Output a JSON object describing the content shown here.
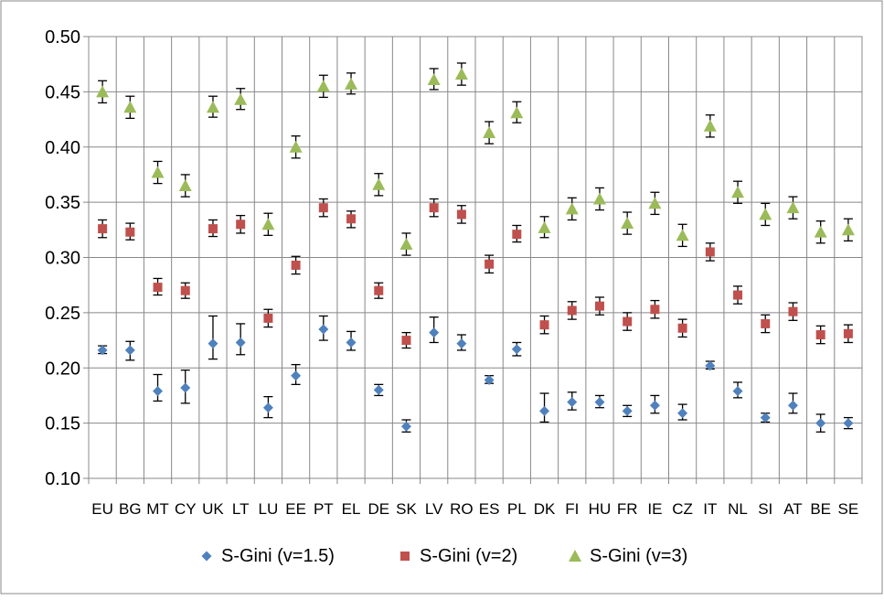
{
  "chart_data": {
    "type": "scatter",
    "categories": [
      "EU",
      "BG",
      "MT",
      "CY",
      "UK",
      "LT",
      "LU",
      "EE",
      "PT",
      "EL",
      "DE",
      "SK",
      "LV",
      "RO",
      "ES",
      "PL",
      "DK",
      "FI",
      "HU",
      "FR",
      "IE",
      "CZ",
      "IT",
      "NL",
      "SI",
      "AT",
      "BE",
      "SE"
    ],
    "ylim": [
      0.1,
      0.5
    ],
    "yticks": [
      "0.10",
      "0.15",
      "0.20",
      "0.25",
      "0.30",
      "0.35",
      "0.40",
      "0.45",
      "0.50"
    ],
    "grid": {
      "horizontal": true,
      "vertical": true
    },
    "legend_position": "bottom",
    "series": [
      {
        "name": "S-Gini (v=1.5)",
        "marker": "diamond",
        "color": "#4f81bd",
        "values": [
          0.216,
          0.216,
          0.179,
          0.182,
          0.222,
          0.223,
          0.164,
          0.193,
          0.235,
          0.223,
          0.18,
          0.147,
          0.232,
          0.222,
          0.189,
          0.217,
          0.161,
          0.169,
          0.169,
          0.161,
          0.166,
          0.159,
          0.202,
          0.179,
          0.155,
          0.166,
          0.15,
          0.15
        ],
        "err_low": [
          0.213,
          0.207,
          0.17,
          0.168,
          0.208,
          0.212,
          0.155,
          0.185,
          0.225,
          0.216,
          0.175,
          0.142,
          0.223,
          0.216,
          0.186,
          0.211,
          0.151,
          0.162,
          0.164,
          0.156,
          0.159,
          0.153,
          0.199,
          0.173,
          0.151,
          0.159,
          0.142,
          0.145
        ],
        "err_high": [
          0.22,
          0.224,
          0.194,
          0.198,
          0.247,
          0.24,
          0.174,
          0.203,
          0.247,
          0.233,
          0.185,
          0.153,
          0.246,
          0.23,
          0.193,
          0.223,
          0.177,
          0.178,
          0.175,
          0.166,
          0.175,
          0.167,
          0.206,
          0.187,
          0.159,
          0.177,
          0.158,
          0.155
        ]
      },
      {
        "name": "S-Gini (v=2)",
        "marker": "square",
        "color": "#c0504d",
        "values": [
          0.326,
          0.323,
          0.273,
          0.27,
          0.326,
          0.33,
          0.245,
          0.293,
          0.345,
          0.335,
          0.27,
          0.225,
          0.345,
          0.339,
          0.294,
          0.321,
          0.239,
          0.252,
          0.256,
          0.242,
          0.253,
          0.236,
          0.305,
          0.266,
          0.24,
          0.251,
          0.23,
          0.231
        ],
        "err_low": [
          0.318,
          0.316,
          0.266,
          0.263,
          0.319,
          0.322,
          0.237,
          0.285,
          0.337,
          0.327,
          0.263,
          0.218,
          0.337,
          0.331,
          0.286,
          0.314,
          0.231,
          0.244,
          0.248,
          0.234,
          0.245,
          0.228,
          0.297,
          0.258,
          0.232,
          0.243,
          0.222,
          0.223
        ],
        "err_high": [
          0.334,
          0.331,
          0.281,
          0.277,
          0.334,
          0.338,
          0.253,
          0.301,
          0.353,
          0.342,
          0.277,
          0.232,
          0.353,
          0.347,
          0.302,
          0.329,
          0.247,
          0.26,
          0.264,
          0.25,
          0.261,
          0.244,
          0.313,
          0.274,
          0.248,
          0.259,
          0.238,
          0.239
        ]
      },
      {
        "name": "S-Gini (v=3)",
        "marker": "triangle",
        "color": "#9bbb59",
        "values": [
          0.45,
          0.436,
          0.377,
          0.365,
          0.436,
          0.443,
          0.33,
          0.4,
          0.455,
          0.457,
          0.366,
          0.312,
          0.461,
          0.466,
          0.413,
          0.431,
          0.327,
          0.344,
          0.353,
          0.331,
          0.349,
          0.32,
          0.419,
          0.359,
          0.339,
          0.345,
          0.323,
          0.325
        ],
        "err_low": [
          0.44,
          0.426,
          0.367,
          0.355,
          0.427,
          0.434,
          0.32,
          0.39,
          0.445,
          0.448,
          0.356,
          0.302,
          0.452,
          0.456,
          0.403,
          0.422,
          0.318,
          0.334,
          0.343,
          0.321,
          0.339,
          0.31,
          0.409,
          0.349,
          0.329,
          0.335,
          0.313,
          0.315
        ],
        "err_high": [
          0.46,
          0.446,
          0.387,
          0.375,
          0.446,
          0.453,
          0.34,
          0.41,
          0.465,
          0.467,
          0.376,
          0.322,
          0.471,
          0.476,
          0.423,
          0.441,
          0.337,
          0.354,
          0.363,
          0.341,
          0.359,
          0.33,
          0.429,
          0.369,
          0.349,
          0.355,
          0.333,
          0.335
        ]
      }
    ]
  }
}
